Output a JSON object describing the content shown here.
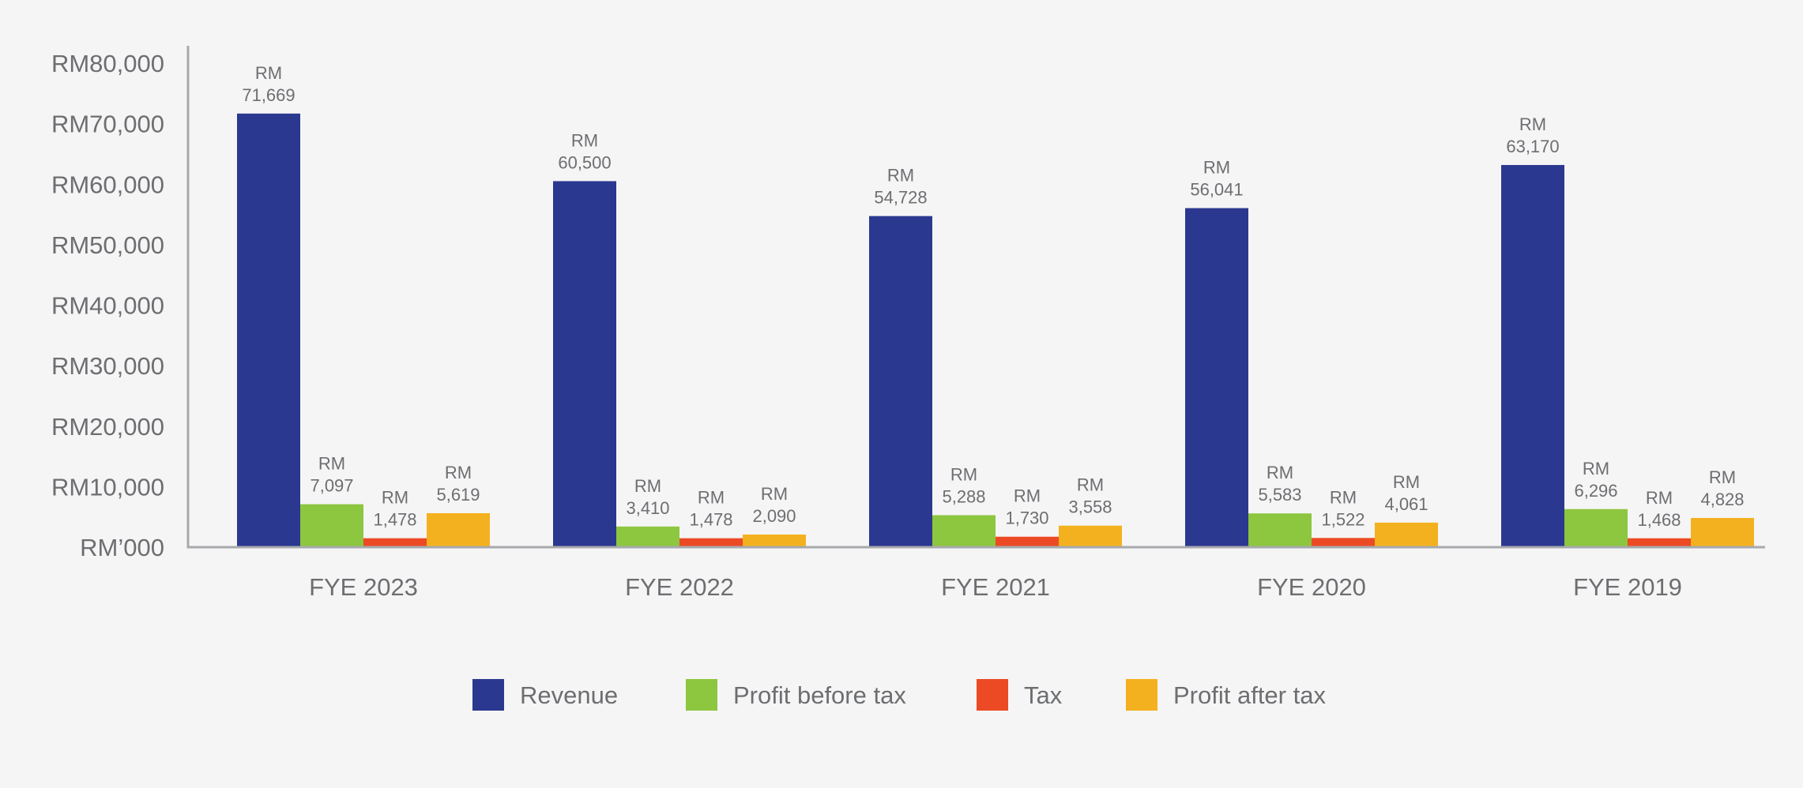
{
  "chart_data": {
    "type": "bar",
    "title": "",
    "xlabel": "",
    "ylabel": "",
    "ylim": [
      0,
      80000
    ],
    "y_ticks": [
      {
        "value": 0,
        "label": "RM’000"
      },
      {
        "value": 10000,
        "label": "RM10,000"
      },
      {
        "value": 20000,
        "label": "RM20,000"
      },
      {
        "value": 30000,
        "label": "RM30,000"
      },
      {
        "value": 40000,
        "label": "RM40,000"
      },
      {
        "value": 50000,
        "label": "RM50,000"
      },
      {
        "value": 60000,
        "label": "RM60,000"
      },
      {
        "value": 70000,
        "label": "RM70,000"
      },
      {
        "value": 80000,
        "label": "RM80,000"
      }
    ],
    "categories": [
      "FYE 2023",
      "FYE 2022",
      "FYE 2021",
      "FYE 2020",
      "FYE 2019"
    ],
    "label_prefix": "RM",
    "grid": false,
    "legend_position": "bottom-center",
    "series": [
      {
        "name": "Revenue",
        "color": "#2b388f",
        "values": [
          71669,
          60500,
          54728,
          56041,
          63170
        ],
        "labels": [
          "71,669",
          "60,500",
          "54,728",
          "56,041",
          "63,170"
        ]
      },
      {
        "name": "Profit before tax",
        "color": "#8dc63f",
        "values": [
          7097,
          3410,
          5288,
          5583,
          6296
        ],
        "labels": [
          "7,097",
          "3,410",
          "5,288",
          "5,583",
          "6,296"
        ]
      },
      {
        "name": "Tax",
        "color": "#ec4a24",
        "values": [
          1478,
          1478,
          1730,
          1522,
          1468
        ],
        "labels": [
          "1,478",
          "1,478",
          "1,730",
          "1,522",
          "1,468"
        ]
      },
      {
        "name": "Profit after tax",
        "color": "#f4b11f",
        "values": [
          5619,
          2090,
          3558,
          4061,
          4828
        ],
        "labels": [
          "5,619",
          "2,090",
          "3,558",
          "4,061",
          "4,828"
        ]
      }
    ]
  },
  "colors": {
    "background": "#f5f5f5",
    "axis": "#a7a9ac",
    "text": "#6d6e71"
  }
}
